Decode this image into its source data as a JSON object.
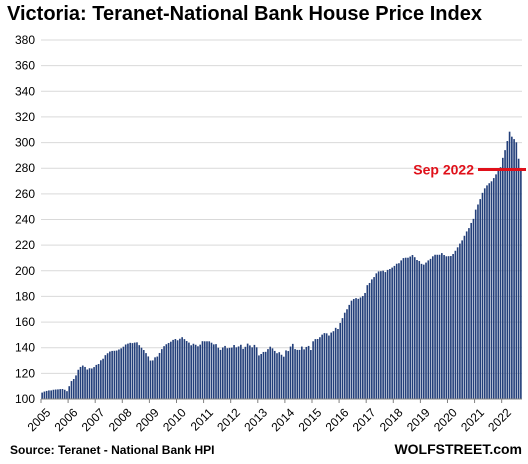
{
  "chart_data": {
    "type": "bar",
    "title": "Victoria: Teranet-National  Bank House Price Index",
    "source": "Source: Teranet - National Bank HPI",
    "brand": "WOLFSTREET.com",
    "ylim": [
      100,
      380
    ],
    "yticks": [
      100,
      120,
      140,
      160,
      180,
      200,
      220,
      240,
      260,
      280,
      300,
      320,
      340,
      360,
      380
    ],
    "grid": true,
    "xticks": [
      "2005",
      "2006",
      "2007",
      "2008",
      "2009",
      "2010",
      "2011",
      "2012",
      "2013",
      "2014",
      "2015",
      "2016",
      "2017",
      "2018",
      "2019",
      "2020",
      "2021",
      "2022"
    ],
    "start_month": "2005-01",
    "annotation": {
      "text": "Sep 2022",
      "value": 279,
      "color": "#e0101a"
    },
    "bar_color": "#233f7a",
    "values": [
      105.0,
      105.8,
      106.3,
      106.7,
      106.7,
      107.2,
      107.4,
      107.5,
      107.7,
      107.8,
      107.2,
      106.1,
      110.0,
      114.0,
      115.6,
      118.4,
      122.8,
      125.0,
      126.1,
      125.0,
      123.0,
      124.0,
      123.8,
      124.9,
      126.6,
      127.3,
      130.2,
      131.4,
      134.2,
      135.7,
      137.0,
      137.5,
      137.6,
      137.8,
      138.6,
      139.5,
      140.8,
      142.5,
      143.2,
      143.8,
      143.6,
      144.0,
      144.2,
      142.0,
      140.0,
      138.2,
      135.8,
      133.2,
      130.0,
      130.1,
      132.5,
      133.1,
      135.9,
      138.9,
      141.2,
      142.7,
      143.7,
      144.7,
      146.1,
      146.8,
      145.8,
      147.0,
      148.2,
      146.7,
      145.2,
      144.0,
      141.9,
      143.1,
      142.3,
      141.1,
      142.4,
      145.1,
      145.0,
      145.0,
      145.0,
      143.9,
      142.6,
      142.8,
      140.0,
      138.3,
      140.2,
      141.4,
      139.6,
      139.9,
      140.1,
      142.1,
      140.3,
      141.0,
      142.3,
      139.1,
      140.7,
      143.2,
      141.8,
      140.3,
      142.2,
      140.3,
      134.0,
      135.1,
      136.7,
      136.8,
      138.9,
      140.8,
      139.5,
      137.5,
      135.7,
      136.5,
      134.5,
      133.0,
      137.9,
      137.4,
      140.9,
      143.0,
      138.9,
      138.3,
      138.3,
      140.9,
      138.7,
      140.6,
      141.4,
      138.2,
      145.0,
      146.7,
      146.8,
      148.2,
      150.2,
      151.4,
      151.2,
      149.5,
      151.8,
      152.9,
      155.5,
      154.6,
      159.3,
      163.1,
      167.3,
      170.0,
      173.4,
      176.7,
      178.0,
      178.7,
      178.1,
      179.2,
      180.3,
      182.7,
      188.8,
      190.5,
      193.3,
      195.1,
      198.0,
      199.5,
      199.7,
      200.1,
      199.0,
      200.7,
      201.4,
      202.5,
      203.8,
      205.5,
      205.9,
      208.1,
      209.9,
      210.2,
      210.2,
      211.1,
      212.3,
      210.6,
      208.4,
      207.6,
      205.4,
      204.8,
      206.4,
      208.1,
      209.3,
      211.3,
      212.5,
      212.5,
      212.5,
      213.8,
      212.3,
      211.3,
      211.4,
      211.5,
      213.1,
      215.6,
      218.3,
      221.2,
      223.7,
      227.3,
      230.7,
      233.3,
      237.3,
      240.5,
      247.7,
      251.7,
      255.9,
      260.8,
      264.3,
      266.6,
      268.3,
      269.8,
      272.3,
      275.2,
      278.6,
      280.8,
      288.1,
      294.1,
      301.2,
      308.5,
      304.6,
      302.7,
      300.2,
      287.4,
      279.0
    ]
  }
}
